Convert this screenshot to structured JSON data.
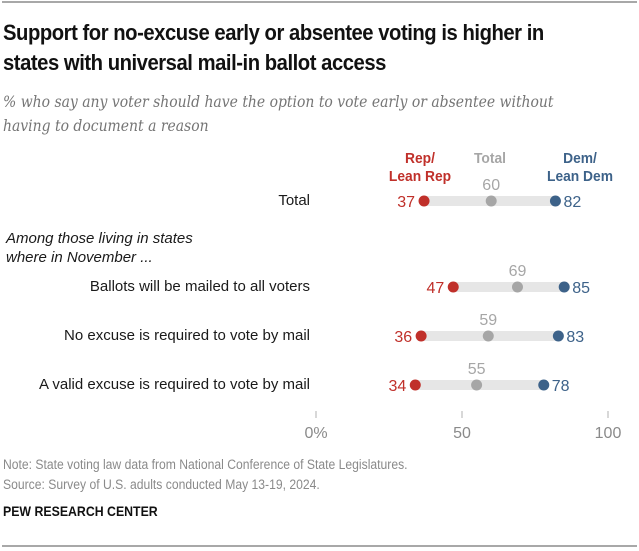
{
  "chart_data": {
    "type": "dot",
    "title": "Support for no-excuse early or absentee voting is higher in states with universal mail-in ballot access",
    "subtitle": "% who say any voter should have the option to vote early or absentee without having to document a reason",
    "legend": [
      {
        "key": "rep",
        "label_line1": "Rep/",
        "label_line2": "Lean Rep",
        "color": "#c0302a"
      },
      {
        "key": "total",
        "label_line1": "Total",
        "label_line2": "",
        "color": "#a6a6a6"
      },
      {
        "key": "dem",
        "label_line1": "Dem/",
        "label_line2": "Lean Dem",
        "color": "#3d6289"
      }
    ],
    "group_label": "Among those living in states where in November ...",
    "group_label_line1": "Among those living in states",
    "group_label_line2": "where in November ...",
    "categories": [
      "Total",
      "Ballots will be mailed to all voters",
      "No excuse is required to vote by mail",
      "A valid excuse is required to vote by mail"
    ],
    "series": [
      {
        "name": "Rep/Lean Rep",
        "key": "rep",
        "values": [
          37,
          47,
          36,
          34
        ]
      },
      {
        "name": "Total",
        "key": "total",
        "values": [
          60,
          69,
          59,
          55
        ]
      },
      {
        "name": "Dem/Lean Dem",
        "key": "dem",
        "values": [
          82,
          85,
          83,
          78
        ]
      }
    ],
    "x_axis": {
      "range": [
        0,
        100
      ],
      "ticks": [
        0,
        50,
        100
      ],
      "tick_labels": [
        "0%",
        "50",
        "100"
      ]
    },
    "grid": false,
    "legend_placement": "top-right"
  },
  "colors": {
    "rep": "#c0302a",
    "total": "#a6a6a6",
    "dem": "#3d6289",
    "bar": "#e6e6e6",
    "axis_text": "#8a8a8a"
  },
  "footer": {
    "note": "Note: State voting law data from National Conference of State Legislatures.",
    "source": "Source: Survey of U.S. adults conducted May 13-19, 2024.",
    "brand": "PEW RESEARCH CENTER"
  }
}
